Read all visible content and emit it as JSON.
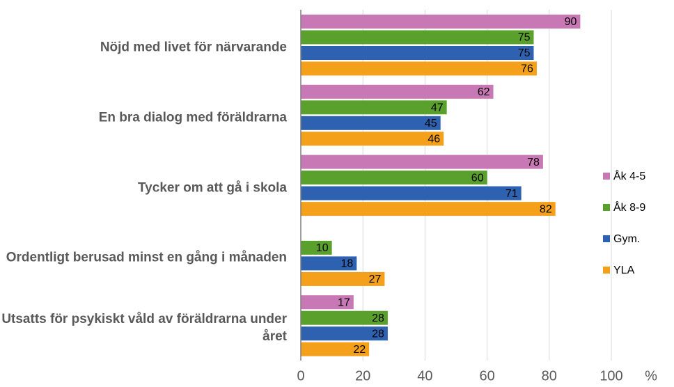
{
  "chart_data": {
    "type": "bar",
    "orientation": "horizontal",
    "categories": [
      "Nöjd med livet för närvarande",
      "En bra dialog med föräldrarna",
      "Tycker om att gå i skola",
      "Ordentligt berusad minst en gång i månaden",
      "Utsatts för psykiskt våld av föräldrarna under året"
    ],
    "series": [
      {
        "name": "Åk 4-5",
        "color": "#c878b4",
        "values": [
          90,
          62,
          78,
          null,
          17
        ]
      },
      {
        "name": "Åk 8-9",
        "color": "#5aa02c",
        "values": [
          75,
          47,
          60,
          10,
          28
        ]
      },
      {
        "name": "Gym.",
        "color": "#2e62b0",
        "values": [
          75,
          45,
          71,
          18,
          28
        ]
      },
      {
        "name": "YLA",
        "color": "#f5a01a",
        "values": [
          76,
          46,
          82,
          27,
          22
        ]
      }
    ],
    "xlim": [
      0,
      100
    ],
    "xticks": [
      0,
      20,
      40,
      60,
      80,
      100
    ],
    "xlabel": "%",
    "grid": true,
    "legend": "right"
  }
}
